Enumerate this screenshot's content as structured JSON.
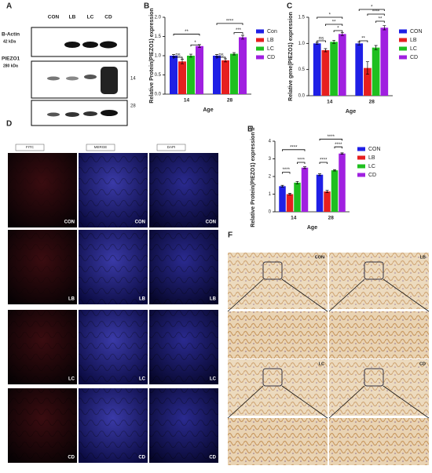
{
  "panel_labels": [
    "A",
    "B",
    "C",
    "D",
    "E",
    "F"
  ],
  "blot": {
    "lanes": [
      "CON",
      "LB",
      "LC",
      "CD"
    ],
    "rows": [
      {
        "label": "B-Actin",
        "kda": "42 kDa"
      },
      {
        "label": "PIEZO1",
        "kda": "280 kDa"
      }
    ],
    "ages": [
      "14",
      "28"
    ]
  },
  "if_images": {
    "channels": [
      "FITC",
      "MERGE",
      "DAPI"
    ],
    "groups": [
      "CON",
      "LB",
      "LC",
      "CD"
    ]
  },
  "ihc_images": {
    "groups": [
      "CON",
      "LB",
      "LC",
      "CD"
    ]
  },
  "chart_data": [
    {
      "type": "bar",
      "y_label": "Relative Protein(PIEZO1) expression",
      "x_label": "Age",
      "categories": [
        "14",
        "28"
      ],
      "series": [
        {
          "name": "Con",
          "color": "#1f1fe6",
          "values": [
            1.0,
            1.0
          ],
          "errors": [
            0.03,
            0.03
          ]
        },
        {
          "name": "LB",
          "color": "#e61f1f",
          "values": [
            0.85,
            0.88
          ],
          "errors": [
            0.06,
            0.04
          ]
        },
        {
          "name": "LC",
          "color": "#1fbf1f",
          "values": [
            1.0,
            1.05
          ],
          "errors": [
            0.04,
            0.03
          ]
        },
        {
          "name": "CD",
          "color": "#a020e0",
          "values": [
            1.25,
            1.48
          ],
          "errors": [
            0.04,
            0.05
          ]
        }
      ],
      "ylim": [
        0,
        2
      ],
      "yticks": [
        {
          "value": 0,
          "label": "0.0"
        },
        {
          "value": 0.5,
          "label": "0.5"
        },
        {
          "value": 1,
          "label": "1.0"
        },
        {
          "value": 1.5,
          "label": "1.5"
        },
        {
          "value": 2,
          "label": "2.0"
        }
      ],
      "annotations": [
        "ns",
        "*",
        "**",
        "ns",
        "***",
        "****"
      ]
    },
    {
      "type": "bar",
      "y_label": "Relative gene(PIEZO1) expression",
      "x_label": "Age",
      "categories": [
        "14",
        "28"
      ],
      "series": [
        {
          "name": "CON",
          "color": "#1f1fe6",
          "values": [
            1.0,
            1.0
          ],
          "errors": [
            0.02,
            0.03
          ]
        },
        {
          "name": "LB",
          "color": "#e61f1f",
          "values": [
            0.87,
            0.53
          ],
          "errors": [
            0.03,
            0.12
          ]
        },
        {
          "name": "LC",
          "color": "#1fbf1f",
          "values": [
            1.03,
            0.92
          ],
          "errors": [
            0.03,
            0.04
          ]
        },
        {
          "name": "CD",
          "color": "#a020e0",
          "values": [
            1.18,
            1.3
          ],
          "errors": [
            0.03,
            0.04
          ]
        }
      ],
      "ylim": [
        0,
        1.5
      ],
      "yticks": [
        {
          "value": 0,
          "label": "0.0"
        },
        {
          "value": 0.5,
          "label": "0.5"
        },
        {
          "value": 1,
          "label": "1.0"
        },
        {
          "value": 1.5,
          "label": "1.5"
        }
      ],
      "annotations": [
        "ns",
        "*",
        "**",
        "*",
        "**",
        "**",
        "****",
        "*"
      ]
    },
    {
      "type": "bar",
      "y_label": "Relative Protein(PIEZO1) expression IF",
      "x_label": "Age",
      "categories": [
        "14",
        "28"
      ],
      "series": [
        {
          "name": "CON",
          "color": "#1f1fe6",
          "values": [
            1.45,
            2.1
          ],
          "errors": [
            0.05,
            0.05
          ]
        },
        {
          "name": "LB",
          "color": "#e61f1f",
          "values": [
            1.0,
            1.15
          ],
          "errors": [
            0.05,
            0.06
          ]
        },
        {
          "name": "LC",
          "color": "#1fbf1f",
          "values": [
            1.65,
            2.35
          ],
          "errors": [
            0.07,
            0.04
          ]
        },
        {
          "name": "CD",
          "color": "#a020e0",
          "values": [
            2.5,
            3.3
          ],
          "errors": [
            0.05,
            0.04
          ]
        }
      ],
      "ylim": [
        0,
        4
      ],
      "yticks": [
        0,
        1,
        2,
        3,
        4
      ],
      "annotations": [
        "****",
        "****",
        "****",
        "****",
        "****",
        "****"
      ]
    }
  ]
}
